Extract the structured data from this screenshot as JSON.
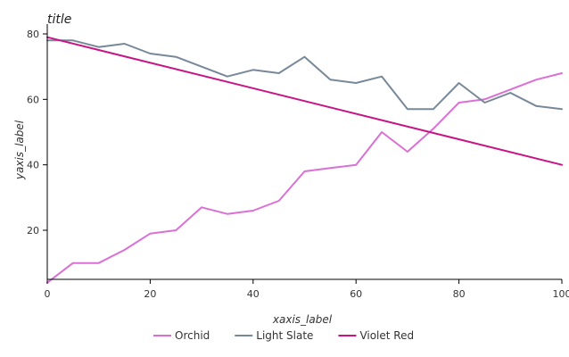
{
  "chart_data": {
    "type": "line",
    "title": "title",
    "xlabel": "xaxis_label",
    "ylabel": "yaxis_label",
    "xlim": [
      0,
      100
    ],
    "ylim": [
      5,
      83
    ],
    "x_ticks": [
      0,
      20,
      40,
      60,
      80,
      100
    ],
    "y_ticks": [
      20,
      40,
      60,
      80
    ],
    "grid": false,
    "legend_position": "bottom",
    "series": [
      {
        "name": "Orchid",
        "color": "#DA70D6",
        "points": [
          [
            0,
            4
          ],
          [
            5,
            10
          ],
          [
            10,
            10
          ],
          [
            15,
            14
          ],
          [
            20,
            19
          ],
          [
            25,
            20
          ],
          [
            30,
            27
          ],
          [
            35,
            25
          ],
          [
            40,
            26
          ],
          [
            45,
            29
          ],
          [
            50,
            38
          ],
          [
            55,
            39
          ],
          [
            60,
            40
          ],
          [
            65,
            50
          ],
          [
            70,
            44
          ],
          [
            75,
            51
          ],
          [
            80,
            59
          ],
          [
            85,
            60
          ],
          [
            90,
            63
          ],
          [
            95,
            66
          ],
          [
            100,
            68
          ]
        ]
      },
      {
        "name": "Light Slate",
        "color": "#778899",
        "points": [
          [
            0,
            78
          ],
          [
            5,
            78
          ],
          [
            10,
            76
          ],
          [
            15,
            77
          ],
          [
            20,
            74
          ],
          [
            25,
            73
          ],
          [
            30,
            70
          ],
          [
            35,
            67
          ],
          [
            40,
            69
          ],
          [
            45,
            68
          ],
          [
            50,
            73
          ],
          [
            55,
            66
          ],
          [
            60,
            65
          ],
          [
            65,
            67
          ],
          [
            70,
            57
          ],
          [
            75,
            57
          ],
          [
            80,
            65
          ],
          [
            85,
            59
          ],
          [
            90,
            62
          ],
          [
            95,
            58
          ],
          [
            100,
            57
          ]
        ]
      },
      {
        "name": "Violet Red",
        "color": "#C71585",
        "points": [
          [
            0,
            79
          ],
          [
            100,
            40
          ]
        ]
      }
    ]
  }
}
